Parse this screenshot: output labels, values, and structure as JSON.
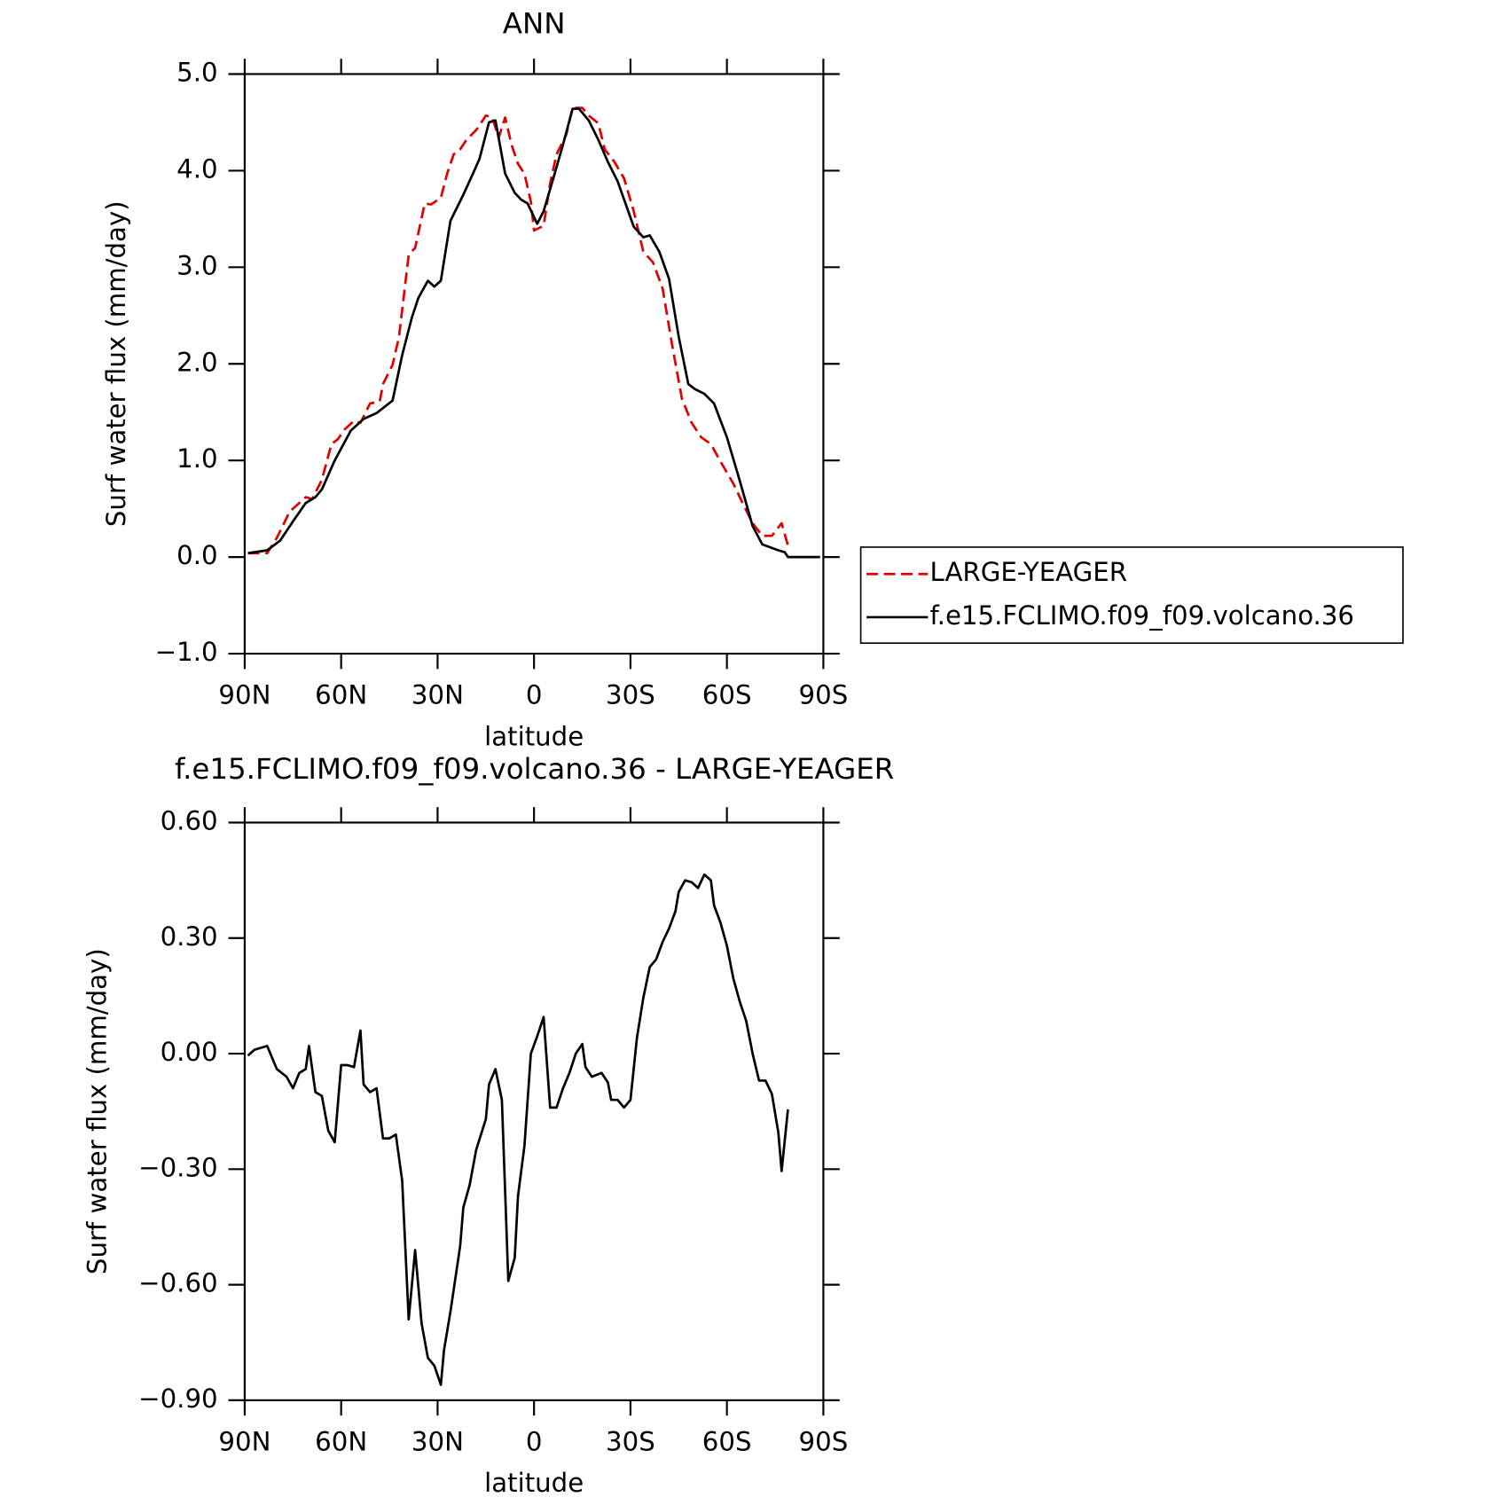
{
  "chart_data": [
    {
      "type": "line",
      "title": "ANN",
      "xlabel": "latitude",
      "ylabel": "Surf water flux (mm/day)",
      "xlim": [
        90,
        -90
      ],
      "xticks": [
        {
          "value": 90,
          "label": "90N"
        },
        {
          "value": 60,
          "label": "60N"
        },
        {
          "value": 30,
          "label": "30N"
        },
        0,
        {
          "value": -30,
          "label": "30S"
        },
        {
          "value": -60,
          "label": "60S"
        },
        {
          "value": -90,
          "label": "90S"
        }
      ],
      "ylim": [
        -1,
        5
      ],
      "yticks": [
        {
          "value": -1,
          "label": "−1.0"
        },
        {
          "value": 0,
          "label": "0.0"
        },
        {
          "value": 1,
          "label": "1.0"
        },
        {
          "value": 2,
          "label": "2.0"
        },
        {
          "value": 3,
          "label": "3.0"
        },
        {
          "value": 4,
          "label": "4.0"
        },
        {
          "value": 5,
          "label": "5.0"
        }
      ],
      "legend": "right",
      "series": [
        {
          "name": "LARGE-YEAGER",
          "color": "#e00000",
          "dash": "dashed",
          "x": [
            89,
            83,
            80,
            76,
            71,
            69,
            66,
            63,
            61,
            59,
            56,
            54,
            51,
            48,
            47,
            44,
            42,
            39,
            37,
            34,
            32,
            29,
            27,
            25,
            23,
            21,
            18,
            15,
            13,
            11,
            9,
            7,
            5,
            3,
            1,
            0,
            -3,
            -5,
            -7,
            -10,
            -12,
            -15,
            -17,
            -20,
            -22,
            -25,
            -28,
            -31,
            -34,
            -37,
            -40,
            -43,
            -46,
            -49,
            -52,
            -55,
            -58,
            -62,
            -65,
            -68,
            -71,
            -74,
            -77,
            -79
          ],
          "values": [
            0.04,
            0.04,
            0.2,
            0.47,
            0.62,
            0.6,
            0.8,
            1.17,
            1.22,
            1.32,
            1.41,
            1.39,
            1.59,
            1.61,
            1.79,
            1.99,
            2.28,
            3.13,
            3.2,
            3.66,
            3.65,
            3.72,
            3.97,
            4.17,
            4.22,
            4.32,
            4.42,
            4.57,
            4.55,
            4.34,
            4.55,
            4.27,
            4.07,
            3.97,
            3.68,
            3.38,
            3.43,
            3.87,
            4.17,
            4.37,
            4.65,
            4.65,
            4.57,
            4.49,
            4.22,
            4.09,
            3.92,
            3.58,
            3.16,
            3.05,
            2.78,
            2.19,
            1.64,
            1.39,
            1.24,
            1.17,
            0.99,
            0.76,
            0.55,
            0.35,
            0.22,
            0.22,
            0.35,
            0.12
          ]
        },
        {
          "name": "f.e15.FCLIMO.f09_f09.volcano.36",
          "color": "#000000",
          "dash": "solid",
          "x": [
            89,
            83,
            79,
            75,
            71,
            68,
            66,
            62,
            57,
            53,
            49,
            44,
            41,
            38,
            36,
            33,
            31,
            29,
            26,
            22,
            19,
            17,
            14,
            12,
            9,
            6,
            4,
            2,
            -1,
            -3,
            -6,
            -9,
            -12,
            -14,
            -17,
            -20,
            -23,
            -26,
            -31,
            -34,
            -36,
            -39,
            -42,
            -45,
            -48,
            -50,
            -53,
            -56,
            -60,
            -64,
            -68,
            -71,
            -76,
            -78,
            -79,
            -83,
            -89
          ],
          "values": [
            0.04,
            0.07,
            0.17,
            0.37,
            0.56,
            0.62,
            0.7,
            1.0,
            1.31,
            1.43,
            1.49,
            1.62,
            2.09,
            2.48,
            2.68,
            2.86,
            2.8,
            2.86,
            3.48,
            3.75,
            3.97,
            4.12,
            4.5,
            4.52,
            3.97,
            3.77,
            3.7,
            3.66,
            3.45,
            3.58,
            3.92,
            4.27,
            4.64,
            4.64,
            4.52,
            4.32,
            4.09,
            3.89,
            3.42,
            3.31,
            3.33,
            3.16,
            2.88,
            2.28,
            1.79,
            1.74,
            1.69,
            1.59,
            1.24,
            0.79,
            0.32,
            0.13,
            0.07,
            0.05,
            0,
            0,
            0
          ]
        }
      ]
    },
    {
      "type": "line",
      "title": "f.e15.FCLIMO.f09_f09.volcano.36 - LARGE-YEAGER",
      "xlabel": "latitude",
      "ylabel": "Surf water flux (mm/day)",
      "xlim": [
        90,
        -90
      ],
      "xticks": [
        {
          "value": 90,
          "label": "90N"
        },
        {
          "value": 60,
          "label": "60N"
        },
        {
          "value": 30,
          "label": "30N"
        },
        0,
        {
          "value": -30,
          "label": "30S"
        },
        {
          "value": -60,
          "label": "60S"
        },
        {
          "value": -90,
          "label": "90S"
        }
      ],
      "ylim": [
        -0.9,
        0.6
      ],
      "yticks": [
        {
          "value": -0.9,
          "label": "−0.90"
        },
        {
          "value": -0.6,
          "label": "−0.60"
        },
        {
          "value": -0.3,
          "label": "−0.30"
        },
        {
          "value": 0,
          "label": "0.00"
        },
        {
          "value": 0.3,
          "label": "0.30"
        },
        {
          "value": 0.6,
          "label": "0.60"
        }
      ],
      "series": [
        {
          "color": "#000000",
          "dash": "solid",
          "x": [
            89,
            87,
            83,
            80,
            77,
            75,
            73,
            71,
            70,
            68,
            66,
            64,
            62,
            60,
            58,
            56,
            54,
            53,
            51,
            49,
            47,
            45,
            43,
            41,
            39,
            37,
            35,
            33,
            31,
            29,
            28,
            26,
            23,
            22,
            20,
            18,
            15,
            14,
            12,
            10,
            8,
            6,
            5,
            3,
            1,
            -1,
            -3,
            -5,
            -7,
            -9,
            -11,
            -13,
            -15,
            -16,
            -18,
            -21,
            -23,
            -24,
            -26,
            -28,
            -30,
            -32,
            -34,
            -36,
            -38,
            -40,
            -42,
            -44,
            -45,
            -47,
            -49,
            -51,
            -53,
            -55,
            -56,
            -58,
            -60,
            -62,
            -64,
            -66,
            -68,
            -70,
            -72,
            -74,
            -76,
            -77,
            -79
          ],
          "values": [
            -0.005,
            0.01,
            0.02,
            -0.04,
            -0.06,
            -0.09,
            -0.05,
            -0.04,
            0.02,
            -0.1,
            -0.11,
            -0.2,
            -0.23,
            -0.03,
            -0.03,
            -0.035,
            0.06,
            -0.08,
            -0.1,
            -0.09,
            -0.22,
            -0.22,
            -0.21,
            -0.33,
            -0.69,
            -0.51,
            -0.7,
            -0.79,
            -0.81,
            -0.86,
            -0.77,
            -0.67,
            -0.5,
            -0.4,
            -0.34,
            -0.25,
            -0.17,
            -0.08,
            -0.04,
            -0.12,
            -0.59,
            -0.53,
            -0.37,
            -0.24,
            0.0,
            0.045,
            0.095,
            -0.14,
            -0.14,
            -0.09,
            -0.05,
            0.0,
            0.025,
            -0.035,
            -0.06,
            -0.05,
            -0.075,
            -0.12,
            -0.12,
            -0.14,
            -0.12,
            0.04,
            0.145,
            0.225,
            0.245,
            0.29,
            0.325,
            0.37,
            0.42,
            0.45,
            0.445,
            0.43,
            0.465,
            0.45,
            0.385,
            0.34,
            0.28,
            0.195,
            0.135,
            0.085,
            0.0,
            -0.07,
            -0.07,
            -0.105,
            -0.205,
            -0.305,
            -0.145
          ]
        }
      ]
    }
  ]
}
